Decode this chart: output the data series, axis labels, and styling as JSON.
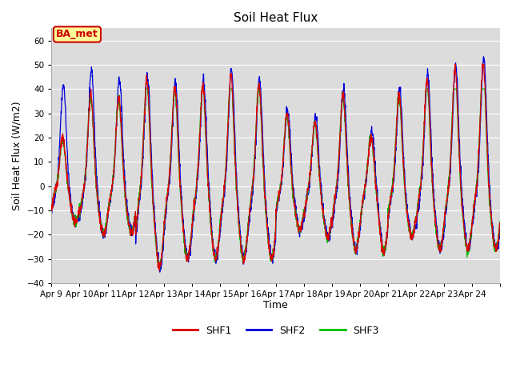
{
  "title": "Soil Heat Flux",
  "ylabel": "Soil Heat Flux (W/m2)",
  "xlabel": "Time",
  "ylim": [
    -40,
    65
  ],
  "yticks": [
    -40,
    -30,
    -20,
    -10,
    0,
    10,
    20,
    30,
    40,
    50,
    60
  ],
  "annotation_label": "BA_met",
  "annotation_color_text": "#cc0000",
  "annotation_bg": "#ffff99",
  "annotation_border": "#cc0000",
  "series_colors": [
    "#dd0000",
    "#0000dd",
    "#00bb00"
  ],
  "series_names": [
    "SHF1",
    "SHF2",
    "SHF3"
  ],
  "x_tick_labels": [
    "Apr 9",
    "Apr 10",
    "Apr 11",
    "Apr 12",
    "Apr 13",
    "Apr 14",
    "Apr 15",
    "Apr 16",
    "Apr 17",
    "Apr 18",
    "Apr 19",
    "Apr 20",
    "Apr 21",
    "Apr 22",
    "Apr 23",
    "Apr 24"
  ],
  "plot_bg": "#dcdcdc",
  "grid_color": "#ffffff",
  "n_days": 16,
  "points_per_day": 144,
  "day_peaks": [
    20,
    38,
    37,
    44,
    41,
    42,
    46,
    42,
    30,
    27,
    38,
    21,
    38,
    44,
    48,
    51
  ],
  "day_troughs": [
    -15,
    -20,
    -19,
    -33,
    -30,
    -30,
    -30,
    -30,
    -18,
    -21,
    -26,
    -27,
    -21,
    -26,
    -26,
    -26
  ],
  "shf2_extra_peaks": [
    22,
    10,
    8,
    2,
    2,
    2,
    2,
    2,
    2,
    2,
    2,
    2,
    2,
    2,
    2,
    2
  ]
}
